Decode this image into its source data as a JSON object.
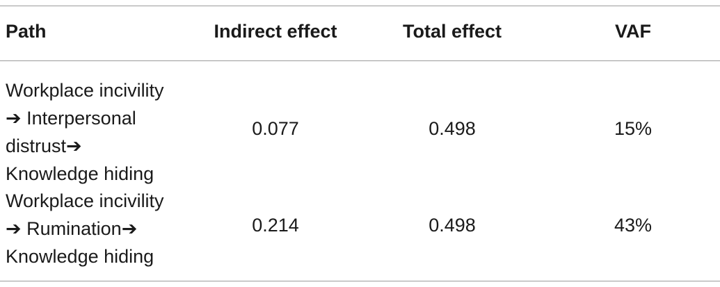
{
  "table": {
    "headers": {
      "path": "Path",
      "indirect_effect": "Indirect effect",
      "total_effect": "Total effect",
      "vaf": "VAF"
    },
    "rows": [
      {
        "path_lines": [
          "Workplace incivility",
          "➔ Interpersonal",
          "distrust➔",
          "Knowledge hiding"
        ],
        "indirect_effect": "0.077",
        "total_effect": "0.498",
        "vaf": "15%"
      },
      {
        "path_lines": [
          "Workplace incivility",
          "➔ Rumination➔",
          "Knowledge hiding"
        ],
        "indirect_effect": "0.214",
        "total_effect": "0.498",
        "vaf": "43%"
      }
    ]
  }
}
